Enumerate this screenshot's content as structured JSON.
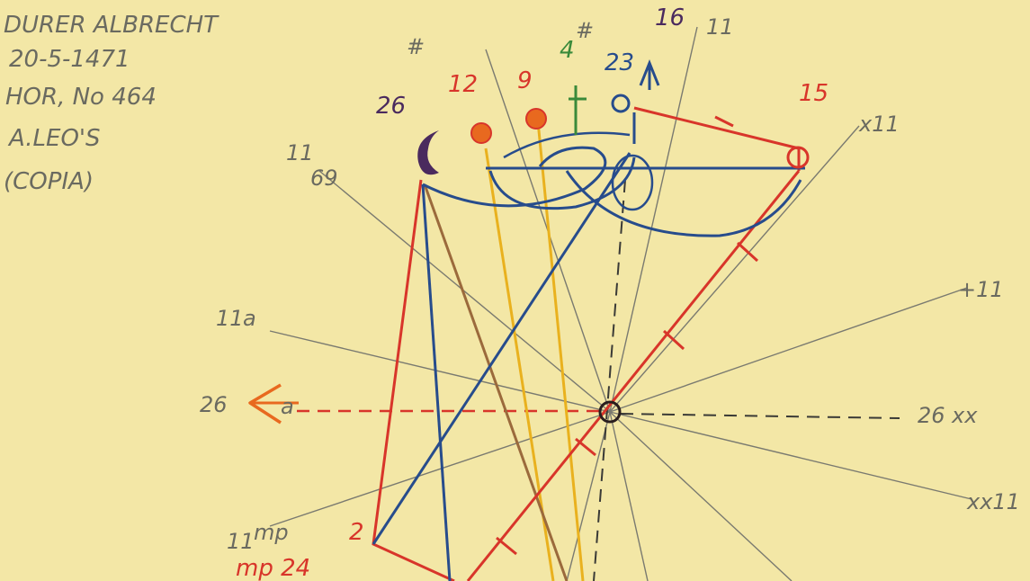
{
  "note": {
    "lines": [
      "DURER ALBRECHT",
      "20-5-1471",
      "HOR, No 464",
      "A.LEO'S",
      "(COPIA)"
    ]
  },
  "colors": {
    "paper": "#f3e7a6",
    "pencil": "#7a7a70",
    "red": "#d8352a",
    "blue": "#274c8c",
    "brown": "#9b6a3c",
    "yellow": "#e9b11e",
    "green": "#3a8a3a",
    "purple": "#4a2a5e",
    "orange": "#e8691f"
  },
  "labels": {
    "left_26": "26",
    "left_sign": "a",
    "right_26": "26",
    "right_sign": "xx",
    "upper_left_11": "11",
    "upper_left_sign": "69",
    "mid_left_11": "11",
    "mid_left_sign": "a",
    "lower_left_11": "11",
    "lower_left_sign": "mp",
    "bottom_left": "mp 24",
    "bottom_left_2": "2",
    "upper_right": "x11",
    "mid_right": "+11",
    "lower_right": "xx11",
    "top_right_11": "11",
    "moon_deg": "26",
    "red_12": "12",
    "red_9": "9",
    "green_4": "4",
    "blue_23": "23",
    "purple_16": "16",
    "red_15": "15",
    "top_hash": "#",
    "top_hash2": "#"
  }
}
